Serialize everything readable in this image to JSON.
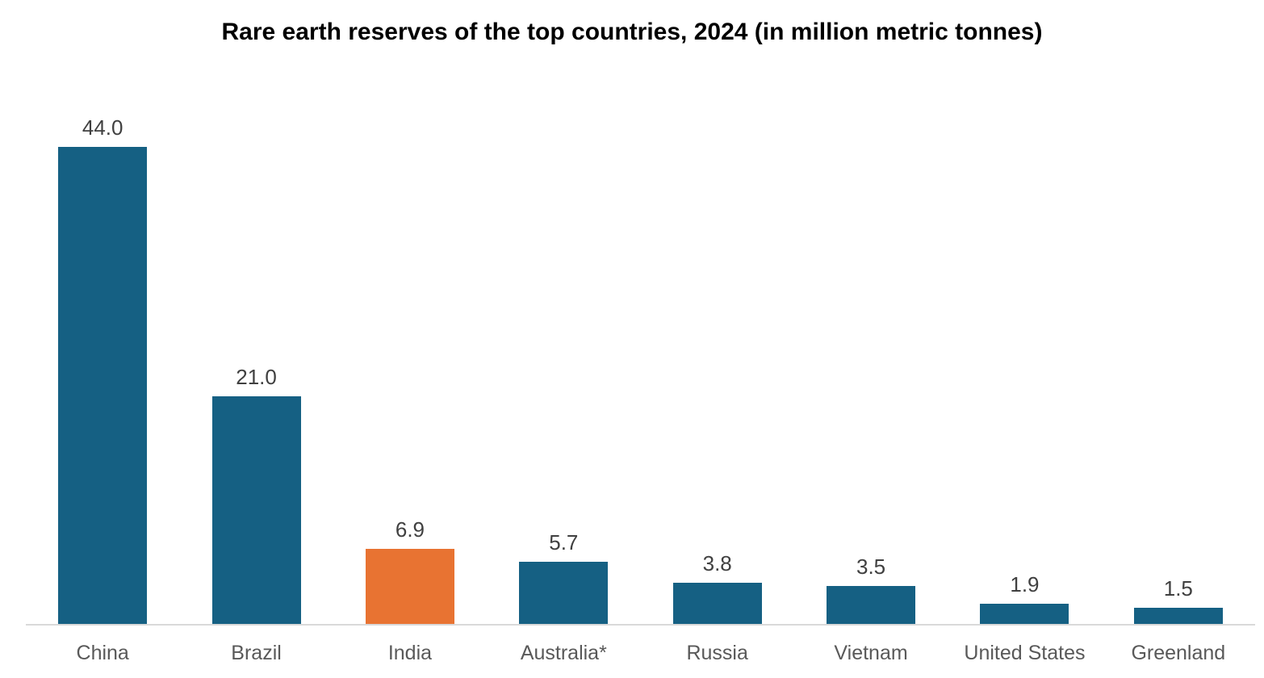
{
  "chart_data": {
    "type": "bar",
    "title": "Rare earth reserves of the top countries, 2024 (in million metric tonnes)",
    "categories": [
      "China",
      "Brazil",
      "India",
      "Australia*",
      "Russia",
      "Vietnam",
      "United States",
      "Greenland"
    ],
    "values": [
      44.0,
      21.0,
      6.9,
      5.7,
      3.8,
      3.5,
      1.9,
      1.5
    ],
    "value_labels": [
      "44.0",
      "21.0",
      "6.9",
      "5.7",
      "3.8",
      "3.5",
      "1.9",
      "1.5"
    ],
    "highlight_index": 2,
    "xlabel": "",
    "ylabel": "",
    "ylim": [
      0,
      44
    ],
    "grid": false,
    "legend": false,
    "colors": {
      "bar": "#156083",
      "highlight": "#E87332",
      "axis_line": "#D9D9D9",
      "value_label": "#404040",
      "category_label": "#595959",
      "title": "#000000"
    }
  }
}
